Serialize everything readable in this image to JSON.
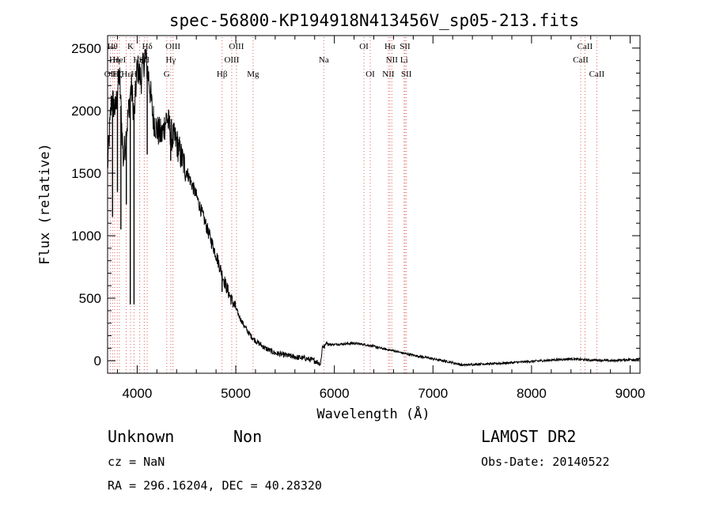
{
  "chart_data": {
    "type": "line",
    "title": "spec-56800-KP194918N413456V_sp05-213.fits",
    "xlabel": "Wavelength (Å)",
    "ylabel": "Flux (relative)",
    "xlim": [
      3700,
      9100
    ],
    "ylim": [
      -100,
      2600
    ],
    "xticks": [
      4000,
      5000,
      6000,
      7000,
      8000,
      9000
    ],
    "yticks": [
      0,
      500,
      1000,
      1500,
      2000,
      2500
    ],
    "xtick_labels": [
      "4000",
      "5000",
      "6000",
      "7000",
      "8000",
      "9000"
    ],
    "ytick_labels": [
      "0",
      "500",
      "1000",
      "1500",
      "2000",
      "2500"
    ],
    "grid": false,
    "series": [
      {
        "x": [
          3700,
          3740,
          3780,
          3820,
          3860,
          3900,
          3940,
          3970,
          4000,
          4040,
          4080,
          4120,
          4160,
          4200,
          4250,
          4300,
          4350,
          4400,
          4450,
          4500,
          4550,
          4600,
          4650,
          4700,
          4750,
          4800,
          4850,
          4900,
          4950,
          5000,
          5050,
          5100,
          5150,
          5200,
          5250,
          5300,
          5350,
          5400,
          5500,
          5600,
          5700,
          5800,
          5860,
          5880,
          5900,
          5920,
          5940,
          6000,
          6100,
          6200,
          6300,
          6400,
          6500,
          6600,
          6700,
          6800,
          6900,
          7000,
          7100,
          7200,
          7300,
          7400,
          7500,
          7600,
          7700,
          7800,
          7900,
          8000,
          8100,
          8200,
          8300,
          8400,
          8500,
          8600,
          8700,
          8800,
          8900,
          9000,
          9100
        ],
        "y": [
          1550,
          2100,
          2000,
          2300,
          1600,
          1900,
          2200,
          1950,
          2350,
          2250,
          2450,
          2250,
          1950,
          1850,
          1800,
          1950,
          1800,
          1750,
          1620,
          1520,
          1420,
          1320,
          1200,
          1080,
          960,
          850,
          720,
          600,
          500,
          420,
          330,
          260,
          200,
          160,
          130,
          100,
          80,
          60,
          45,
          30,
          20,
          0,
          -25,
          120,
          110,
          150,
          130,
          130,
          135,
          140,
          130,
          115,
          95,
          80,
          60,
          45,
          30,
          15,
          0,
          -15,
          -35,
          -30,
          -25,
          -25,
          -20,
          -15,
          -10,
          -5,
          0,
          5,
          10,
          15,
          10,
          5,
          5,
          0,
          5,
          10,
          10
        ]
      }
    ],
    "dips": [
      {
        "x": 3750,
        "y": 1150
      },
      {
        "x": 3800,
        "y": 1350
      },
      {
        "x": 3835,
        "y": 1050
      },
      {
        "x": 3890,
        "y": 1250
      },
      {
        "x": 3930,
        "y": 450
      },
      {
        "x": 3968,
        "y": 450
      },
      {
        "x": 4102,
        "y": 1650
      },
      {
        "x": 4340,
        "y": 1600
      },
      {
        "x": 4861,
        "y": 550
      }
    ],
    "line_markers": [
      {
        "x": 3727,
        "label": "OII",
        "row": 2
      },
      {
        "x": 3750,
        "label": "Hθ",
        "row": 0
      },
      {
        "x": 3771,
        "label": "Hη",
        "row": 1
      },
      {
        "x": 3798,
        "label": "Hζ",
        "row": 2
      },
      {
        "x": 3820,
        "label": "HeI",
        "row": 1
      },
      {
        "x": 3889,
        "label": "Hε",
        "row": 2
      },
      {
        "x": 3933,
        "label": "K",
        "row": 0
      },
      {
        "x": 3968,
        "label": "H",
        "row": 2
      },
      {
        "x": 4026,
        "label": "HeI",
        "row": 1
      },
      {
        "x": 4072,
        "label": "SII",
        "row": 1
      },
      {
        "x": 4102,
        "label": "Hδ",
        "row": 0
      },
      {
        "x": 4300,
        "label": "G",
        "row": 2
      },
      {
        "x": 4341,
        "label": "Hγ",
        "row": 1
      },
      {
        "x": 4363,
        "label": "OIII",
        "row": 0
      },
      {
        "x": 4861,
        "label": "Hβ",
        "row": 2
      },
      {
        "x": 4959,
        "label": "OIII",
        "row": 1
      },
      {
        "x": 5007,
        "label": "OIII",
        "row": 0
      },
      {
        "x": 5175,
        "label": "Mg",
        "row": 2
      },
      {
        "x": 5893,
        "label": "Na",
        "row": 1
      },
      {
        "x": 6300,
        "label": "OI",
        "row": 0
      },
      {
        "x": 6364,
        "label": "OI",
        "row": 2
      },
      {
        "x": 6548,
        "label": "NII",
        "row": 2
      },
      {
        "x": 6563,
        "label": "Hα",
        "row": 0
      },
      {
        "x": 6583,
        "label": "NII",
        "row": 1
      },
      {
        "x": 6707,
        "label": "Li",
        "row": 1
      },
      {
        "x": 6717,
        "label": "SII",
        "row": 0
      },
      {
        "x": 6731,
        "label": "SII",
        "row": 2
      },
      {
        "x": 8498,
        "label": "CaII",
        "row": 1
      },
      {
        "x": 8542,
        "label": "CaII",
        "row": 0
      },
      {
        "x": 8662,
        "label": "CaII",
        "row": 2
      }
    ]
  },
  "info": {
    "object_class": "Unknown",
    "subclass": "Non",
    "cz": "cz = NaN",
    "coords": "RA = 296.16204, DEC =  40.28320",
    "survey": "LAMOST DR2",
    "obs_date": "Obs-Date: 20140522"
  },
  "colors": {
    "spectrum": "#000000",
    "marker_line": "#e06060",
    "axes": "#000000"
  }
}
